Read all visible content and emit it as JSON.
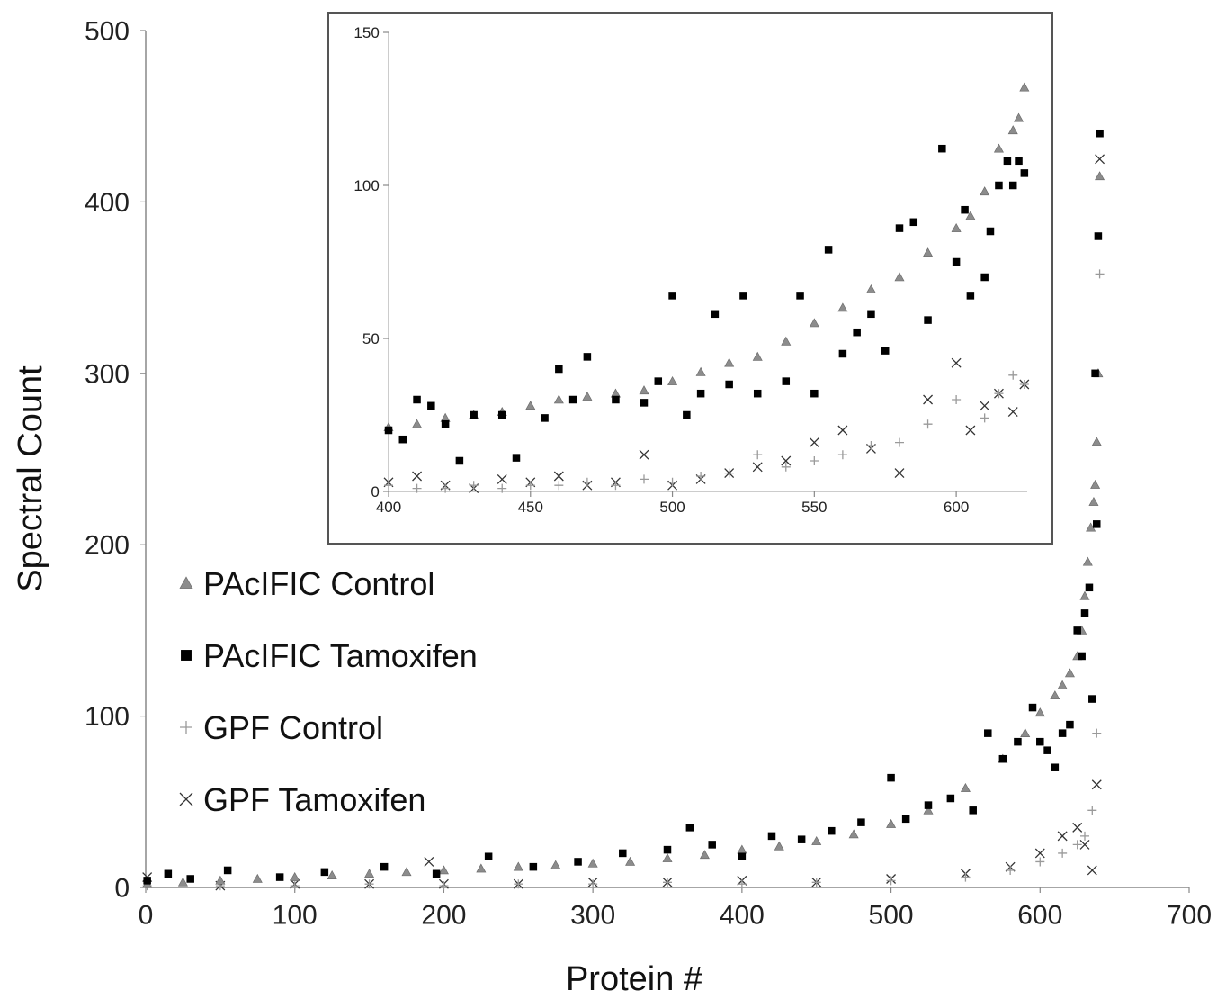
{
  "chart_data": [
    {
      "type": "scatter",
      "title": "",
      "xlabel": "Protein #",
      "ylabel": "Spectral Count",
      "xlim": [
        0,
        700
      ],
      "ylim": [
        0,
        500
      ],
      "xticks": [
        "0",
        "100",
        "200",
        "300",
        "400",
        "500",
        "600",
        "700"
      ],
      "yticks": [
        "0",
        "100",
        "200",
        "300",
        "400",
        "500"
      ],
      "grid": false,
      "legend_position": "left",
      "series": [
        {
          "name": "PAcIFIC Control",
          "marker": "triangle",
          "color": "#8c8c8c",
          "x": [
            1,
            25,
            50,
            75,
            100,
            125,
            150,
            175,
            200,
            225,
            250,
            275,
            300,
            325,
            350,
            375,
            400,
            425,
            450,
            475,
            500,
            525,
            550,
            575,
            590,
            600,
            610,
            615,
            620,
            625,
            628,
            630,
            632,
            634,
            636,
            637,
            638,
            639,
            640
          ],
          "y": [
            2,
            3,
            4,
            5,
            6,
            7,
            8,
            9,
            10,
            11,
            12,
            13,
            14,
            15,
            17,
            19,
            22,
            24,
            27,
            31,
            37,
            45,
            58,
            75,
            90,
            102,
            112,
            118,
            125,
            135,
            150,
            170,
            190,
            210,
            225,
            235,
            260,
            300,
            415
          ]
        },
        {
          "name": "PAcIFIC Tamoxifen",
          "marker": "square",
          "color": "#000000",
          "x": [
            1,
            15,
            30,
            55,
            90,
            120,
            160,
            195,
            230,
            260,
            290,
            320,
            350,
            365,
            380,
            400,
            420,
            440,
            460,
            480,
            500,
            510,
            525,
            540,
            555,
            565,
            575,
            585,
            595,
            600,
            605,
            610,
            615,
            620,
            625,
            628,
            630,
            633,
            635,
            637,
            638,
            639,
            640
          ],
          "y": [
            4,
            8,
            5,
            10,
            6,
            9,
            12,
            8,
            18,
            12,
            15,
            20,
            22,
            35,
            25,
            18,
            30,
            28,
            33,
            38,
            64,
            40,
            48,
            52,
            45,
            90,
            75,
            85,
            105,
            85,
            80,
            70,
            90,
            95,
            150,
            135,
            160,
            175,
            110,
            300,
            212,
            380,
            440
          ]
        },
        {
          "name": "GPF Control",
          "marker": "plus",
          "color": "#9a9a9a",
          "x": [
            1,
            50,
            100,
            150,
            200,
            250,
            300,
            350,
            400,
            450,
            500,
            550,
            580,
            600,
            615,
            625,
            630,
            635,
            638,
            640
          ],
          "y": [
            1,
            1,
            1,
            2,
            1,
            2,
            2,
            3,
            2,
            3,
            4,
            6,
            10,
            15,
            20,
            25,
            30,
            45,
            90,
            358
          ]
        },
        {
          "name": "GPF Tamoxifen",
          "marker": "cross",
          "color": "#333333",
          "x": [
            1,
            50,
            100,
            150,
            190,
            200,
            250,
            300,
            350,
            400,
            450,
            500,
            550,
            580,
            600,
            615,
            625,
            630,
            635,
            638,
            640
          ],
          "y": [
            6,
            1,
            2,
            2,
            15,
            2,
            2,
            3,
            3,
            4,
            3,
            5,
            8,
            12,
            20,
            30,
            35,
            25,
            10,
            60,
            425
          ]
        }
      ]
    },
    {
      "type": "scatter",
      "title": "",
      "xlabel": "",
      "ylabel": "",
      "xlim": [
        400,
        625
      ],
      "ylim": [
        0,
        150
      ],
      "xticks": [
        "400",
        "450",
        "500",
        "550",
        "600"
      ],
      "yticks": [
        "0",
        "50",
        "100",
        "150"
      ],
      "grid": false,
      "position": "inset top-right",
      "series": [
        {
          "name": "PAcIFIC Control",
          "marker": "triangle",
          "color": "#8c8c8c",
          "x": [
            400,
            410,
            420,
            430,
            440,
            450,
            460,
            470,
            480,
            490,
            500,
            510,
            520,
            530,
            540,
            550,
            560,
            570,
            580,
            590,
            600,
            605,
            610,
            615,
            620,
            622,
            624
          ],
          "y": [
            21,
            22,
            24,
            25,
            26,
            28,
            30,
            31,
            32,
            33,
            36,
            39,
            42,
            44,
            49,
            55,
            60,
            66,
            70,
            78,
            86,
            90,
            98,
            112,
            118,
            122,
            132
          ],
          "x_note": "x: 400, 410, 420, 430, 440, 450, 460, 470, 480, 490, 500, 510, 520, 530, 540, 550, 560, 570, 580, 590, 600, 605, 610, 615, 620, 622, 624"
        },
        {
          "name": "PAcIFIC Tamoxifen",
          "marker": "square",
          "color": "#000000",
          "x": [
            400,
            405,
            410,
            415,
            420,
            425,
            430,
            440,
            445,
            455,
            460,
            465,
            470,
            480,
            490,
            495,
            500,
            505,
            510,
            515,
            520,
            525,
            530,
            540,
            545,
            550,
            555,
            560,
            565,
            570,
            575,
            580,
            585,
            590,
            595,
            600,
            603,
            605,
            610,
            612,
            615,
            618,
            620,
            622,
            624
          ],
          "y": [
            20,
            17,
            30,
            28,
            22,
            10,
            25,
            25,
            11,
            24,
            40,
            30,
            44,
            30,
            29,
            36,
            64,
            25,
            32,
            58,
            35,
            64,
            32,
            36,
            64,
            32,
            79,
            45,
            52,
            58,
            46,
            86,
            88,
            56,
            112,
            75,
            92,
            64,
            70,
            85,
            100,
            108,
            100,
            108,
            104
          ]
        },
        {
          "name": "GPF Control",
          "marker": "plus",
          "color": "#9a9a9a",
          "x": [
            400,
            410,
            420,
            430,
            440,
            450,
            460,
            470,
            480,
            490,
            500,
            510,
            520,
            530,
            540,
            550,
            560,
            570,
            580,
            590,
            600,
            610,
            615,
            620,
            624
          ],
          "y": [
            2,
            1,
            1,
            2,
            1,
            2,
            2,
            3,
            2,
            4,
            3,
            5,
            6,
            12,
            8,
            10,
            12,
            15,
            16,
            22,
            30,
            24,
            32,
            38,
            35
          ]
        },
        {
          "name": "GPF Tamoxifen",
          "marker": "cross",
          "color": "#333333",
          "x": [
            400,
            410,
            420,
            430,
            440,
            450,
            460,
            470,
            480,
            490,
            500,
            510,
            520,
            530,
            540,
            550,
            560,
            570,
            580,
            590,
            600,
            605,
            610,
            615,
            620,
            624
          ],
          "y": [
            3,
            5,
            2,
            1,
            4,
            3,
            5,
            2,
            3,
            12,
            2,
            4,
            6,
            8,
            10,
            16,
            20,
            14,
            6,
            30,
            42,
            20,
            28,
            32,
            26,
            35
          ]
        }
      ]
    }
  ],
  "legend": [
    {
      "label": "PAcIFIC Control",
      "marker": "triangle",
      "color": "#8c8c8c"
    },
    {
      "label": "PAcIFIC Tamoxifen",
      "marker": "square",
      "color": "#000000"
    },
    {
      "label": "GPF Control",
      "marker": "plus",
      "color": "#9a9a9a"
    },
    {
      "label": "GPF Tamoxifen",
      "marker": "cross",
      "color": "#333333"
    }
  ]
}
